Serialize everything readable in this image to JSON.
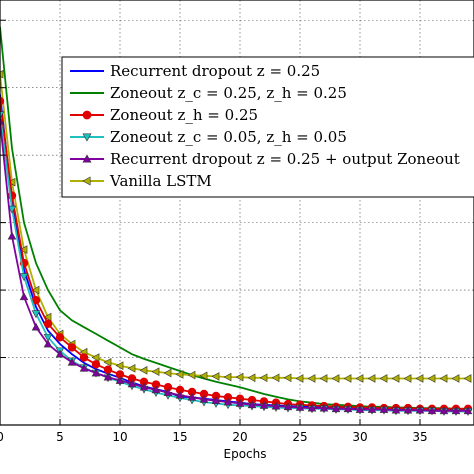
{
  "chart_data": {
    "type": "line",
    "xlabel": "Epochs",
    "ylabel": "",
    "title": "",
    "xlim": [
      0,
      39.5
    ],
    "ylim": [
      0,
      6.3
    ],
    "xticks": [
      0,
      5,
      10,
      15,
      20,
      25,
      30,
      35
    ],
    "grid": true,
    "legend_position": "top-right",
    "x": [
      0,
      1,
      2,
      3,
      4,
      5,
      6,
      7,
      8,
      9,
      10,
      11,
      12,
      13,
      14,
      15,
      16,
      17,
      18,
      19,
      20,
      21,
      22,
      23,
      24,
      25,
      26,
      27,
      28,
      29,
      30,
      31,
      32,
      33,
      34,
      35,
      36,
      37,
      38,
      39
    ],
    "series": [
      {
        "name": "Recurrent dropout z = 0.25",
        "color": "#0000ff",
        "marker": "none",
        "values": [
          4.9,
          3.3,
          2.3,
          1.75,
          1.4,
          1.2,
          1.05,
          0.92,
          0.83,
          0.76,
          0.7,
          0.63,
          0.57,
          0.53,
          0.49,
          0.42,
          0.41,
          0.39,
          0.37,
          0.35,
          0.33,
          0.31,
          0.3,
          0.29,
          0.28,
          0.27,
          0.27,
          0.26,
          0.26,
          0.25,
          0.25,
          0.24,
          0.24,
          0.24,
          0.23,
          0.23,
          0.23,
          0.22,
          0.22,
          0.22
        ]
      },
      {
        "name": "Zoneout z_c = 0.25, z_h = 0.25",
        "color": "#008000",
        "marker": "none",
        "values": [
          5.9,
          4.1,
          3.0,
          2.4,
          2.0,
          1.7,
          1.55,
          1.45,
          1.35,
          1.25,
          1.15,
          1.05,
          0.98,
          0.92,
          0.86,
          0.8,
          0.74,
          0.69,
          0.64,
          0.6,
          0.56,
          0.51,
          0.46,
          0.42,
          0.38,
          0.35,
          0.33,
          0.31,
          0.3,
          0.29,
          0.28,
          0.27,
          0.27,
          0.26,
          0.26,
          0.25,
          0.25,
          0.25,
          0.24,
          0.24
        ]
      },
      {
        "name": "Zoneout z_h = 0.25",
        "color": "#e00000",
        "marker": "circle",
        "values": [
          4.8,
          3.4,
          2.4,
          1.85,
          1.5,
          1.3,
          1.15,
          1.0,
          0.9,
          0.82,
          0.75,
          0.69,
          0.64,
          0.6,
          0.56,
          0.52,
          0.49,
          0.46,
          0.43,
          0.41,
          0.39,
          0.37,
          0.35,
          0.33,
          0.31,
          0.3,
          0.29,
          0.28,
          0.27,
          0.27,
          0.26,
          0.26,
          0.25,
          0.25,
          0.25,
          0.24,
          0.24,
          0.24,
          0.24,
          0.24
        ]
      },
      {
        "name": "Zoneout z_c = 0.05, z_h = 0.05",
        "color": "#20c0c0",
        "marker": "triangle-down",
        "values": [
          4.6,
          3.2,
          2.2,
          1.65,
          1.3,
          1.1,
          0.95,
          0.85,
          0.77,
          0.7,
          0.64,
          0.58,
          0.53,
          0.48,
          0.44,
          0.4,
          0.37,
          0.34,
          0.32,
          0.3,
          0.29,
          0.28,
          0.27,
          0.26,
          0.25,
          0.25,
          0.24,
          0.24,
          0.23,
          0.23,
          0.22,
          0.22,
          0.22,
          0.21,
          0.21,
          0.21,
          0.21,
          0.2,
          0.2,
          0.2
        ]
      },
      {
        "name": "Recurrent dropout z = 0.25 + output Zoneout",
        "color": "#8000a0",
        "marker": "triangle-up",
        "values": [
          4.5,
          2.8,
          1.9,
          1.45,
          1.2,
          1.05,
          0.93,
          0.84,
          0.77,
          0.71,
          0.66,
          0.61,
          0.56,
          0.52,
          0.48,
          0.44,
          0.41,
          0.38,
          0.36,
          0.34,
          0.32,
          0.3,
          0.29,
          0.28,
          0.27,
          0.26,
          0.25,
          0.25,
          0.24,
          0.24,
          0.23,
          0.23,
          0.23,
          0.22,
          0.22,
          0.22,
          0.21,
          0.21,
          0.21,
          0.21
        ]
      },
      {
        "name": "Vanilla LSTM",
        "color": "#b0b000",
        "marker": "triangle-left",
        "values": [
          5.2,
          3.6,
          2.6,
          2.0,
          1.6,
          1.35,
          1.2,
          1.08,
          1.0,
          0.93,
          0.88,
          0.84,
          0.81,
          0.79,
          0.77,
          0.75,
          0.74,
          0.73,
          0.72,
          0.71,
          0.71,
          0.7,
          0.7,
          0.7,
          0.7,
          0.69,
          0.69,
          0.69,
          0.69,
          0.69,
          0.69,
          0.69,
          0.69,
          0.69,
          0.69,
          0.69,
          0.69,
          0.69,
          0.69,
          0.69
        ]
      }
    ],
    "legend": [
      {
        "text": "Recurrent dropout z = 0.25"
      },
      {
        "text": "Zoneout z_c = 0.25, z_h = 0.25"
      },
      {
        "text": "Zoneout z_h = 0.25"
      },
      {
        "text": "Zoneout z_c = 0.05, z_h = 0.05"
      },
      {
        "text": "Recurrent dropout z = 0.25 + output Zoneout"
      },
      {
        "text": "Vanilla LSTM"
      }
    ]
  }
}
